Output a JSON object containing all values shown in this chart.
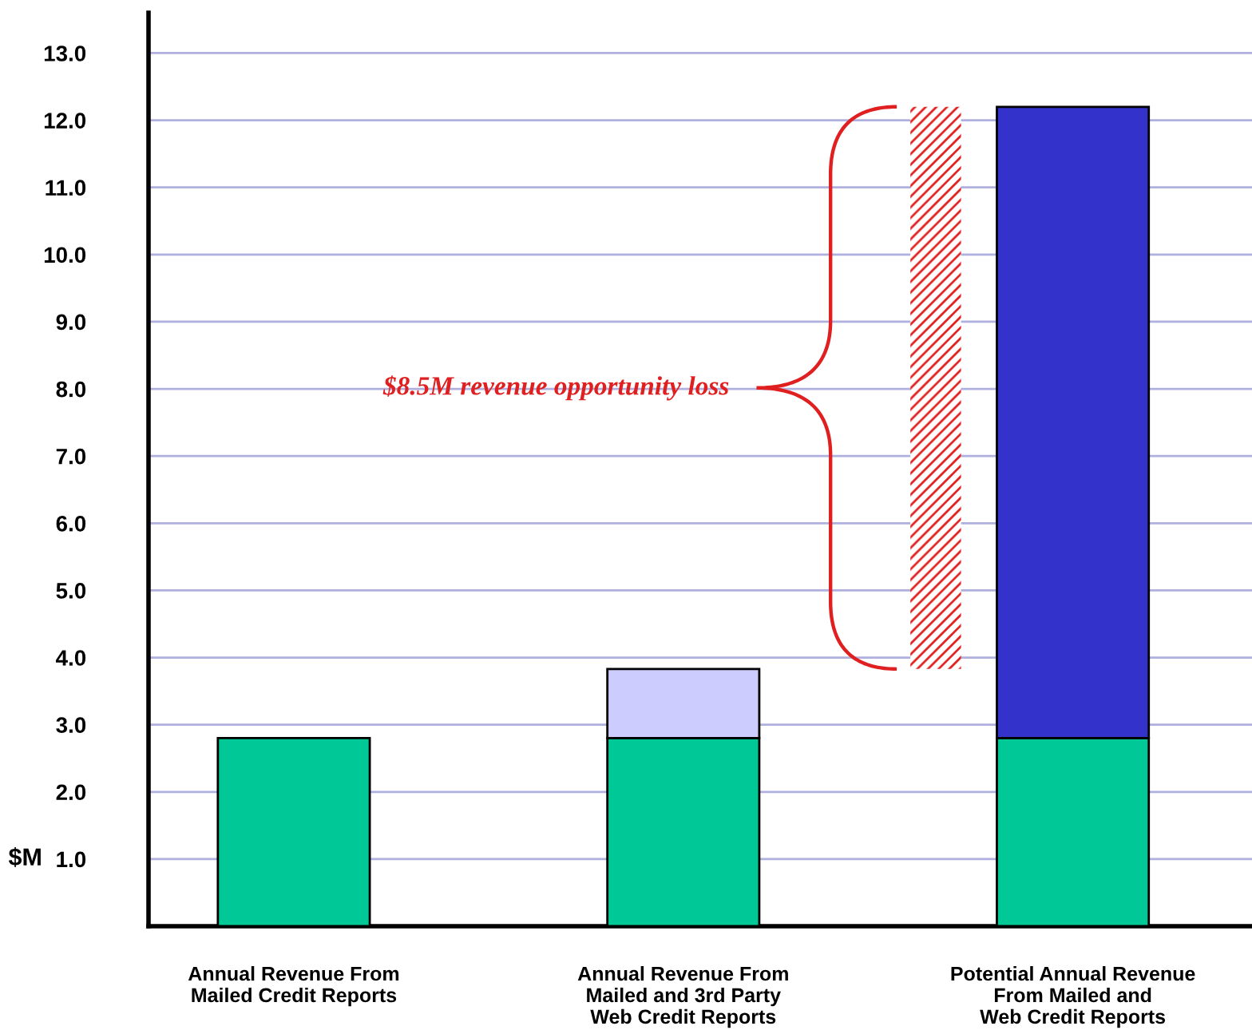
{
  "chart_data": {
    "type": "bar",
    "stacked": true,
    "categories": [
      "Annual Revenue From\nMailed Credit Reports",
      "Annual Revenue From\nMailed and 3rd Party\nWeb Credit Reports",
      "Potential Annual Revenue\nFrom Mailed and\nWeb Credit Reports"
    ],
    "series": [
      {
        "color": "#00c896",
        "values": [
          2.8,
          2.8,
          2.8
        ]
      },
      {
        "color": "#ccccff",
        "values": [
          null,
          1.03,
          null
        ]
      },
      {
        "color": "#3333cc",
        "values": [
          null,
          null,
          9.4
        ]
      }
    ],
    "ylabel": "$M",
    "ylim": [
      0,
      13.6
    ],
    "yticks": [
      {
        "value": 1,
        "label": "1.0"
      },
      {
        "value": 2,
        "label": "2.0"
      },
      {
        "value": 3,
        "label": "3.0"
      },
      {
        "value": 4,
        "label": "4.0"
      },
      {
        "value": 5,
        "label": "5.0"
      },
      {
        "value": 6,
        "label": "6.0"
      },
      {
        "value": 7,
        "label": "7.0"
      },
      {
        "value": 8,
        "label": "8.0"
      },
      {
        "value": 9,
        "label": "9.0"
      },
      {
        "value": 10,
        "label": "10.0"
      },
      {
        "value": 11,
        "label": "11.0"
      },
      {
        "value": 12,
        "label": "12.0"
      },
      {
        "value": 13,
        "label": "13.0"
      }
    ],
    "grid": "y",
    "annotations": [
      "$8.5M revenue opportunity loss"
    ]
  }
}
